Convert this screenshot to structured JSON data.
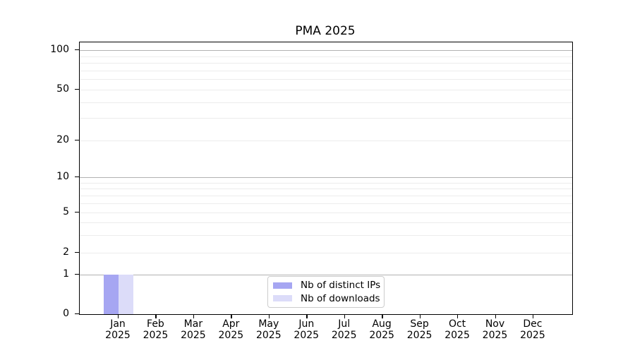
{
  "title": "PMA 2025",
  "chart_data": {
    "type": "bar",
    "title": "PMA 2025",
    "categories": [
      "Jan 2025",
      "Feb 2025",
      "Mar 2025",
      "Apr 2025",
      "May 2025",
      "Jun 2025",
      "Jul 2025",
      "Aug 2025",
      "Sep 2025",
      "Oct 2025",
      "Nov 2025",
      "Dec 2025"
    ],
    "series": [
      {
        "name": "Nb of distinct IPs",
        "color": "#a6a6f2",
        "values": [
          1,
          0,
          0,
          0,
          0,
          0,
          0,
          0,
          0,
          0,
          0,
          0
        ]
      },
      {
        "name": "Nb of downloads",
        "color": "#dcdcf9",
        "values": [
          1,
          0,
          0,
          0,
          0,
          0,
          0,
          0,
          0,
          0,
          0,
          0
        ]
      }
    ],
    "xlabel": "",
    "ylabel": "",
    "yscale": "symlog-like",
    "ylim": [
      0,
      110
    ],
    "ytick_values": [
      0,
      1,
      2,
      5,
      10,
      20,
      50,
      100
    ],
    "major_gridline_values": [
      1,
      10,
      100
    ],
    "minor_gridline_values": [
      2,
      3,
      4,
      5,
      6,
      7,
      8,
      9,
      20,
      30,
      40,
      50,
      60,
      70,
      80,
      90
    ],
    "grid": true,
    "legend_position": "lower center"
  }
}
